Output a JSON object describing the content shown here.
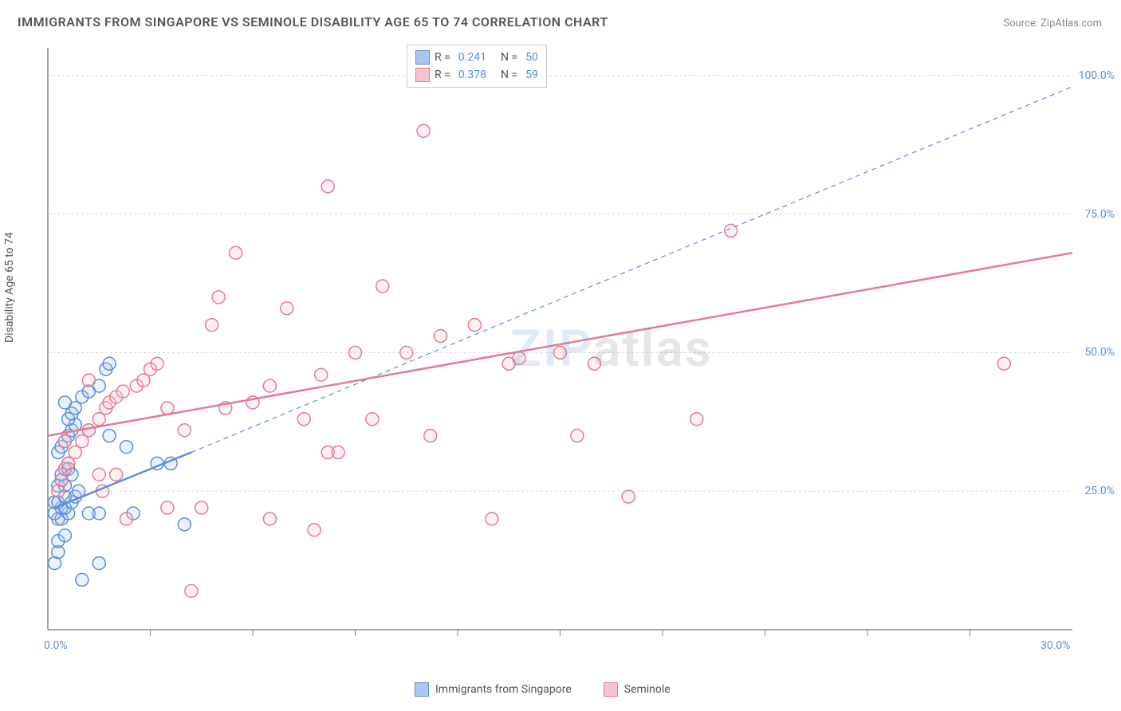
{
  "title": "IMMIGRANTS FROM SINGAPORE VS SEMINOLE DISABILITY AGE 65 TO 74 CORRELATION CHART",
  "source": "Source: ZipAtlas.com",
  "watermark_zip": "ZIP",
  "watermark_atlas": "atlas",
  "ylabel": "Disability Age 65 to 74",
  "chart": {
    "type": "scatter",
    "background_color": "#ffffff",
    "grid_color": "#d5d5d5",
    "axis_color": "#888888",
    "xlim": [
      0,
      30
    ],
    "ylim": [
      0,
      105
    ],
    "xticks_major": [
      0,
      30
    ],
    "xticks_minor": [
      3,
      6,
      9,
      12,
      15,
      18,
      21,
      24,
      27
    ],
    "yticks": [
      25,
      50,
      75,
      100
    ],
    "xtick_labels": [
      "0.0%",
      "30.0%"
    ],
    "ytick_labels": [
      "25.0%",
      "50.0%",
      "75.0%",
      "100.0%"
    ],
    "tick_color": "#5b8fd6",
    "tick_fontsize": 14,
    "marker_radius": 8,
    "marker_fill_opacity": 0.25,
    "marker_stroke_width": 1.5,
    "series": [
      {
        "name": "Immigrants from Singapore",
        "color": "#5b8fd6",
        "fill": "#a9c8ec",
        "R": "0.241",
        "N": "50",
        "trend_solid": {
          "x1": 0.2,
          "y1": 22,
          "x2": 4.2,
          "y2": 32,
          "width": 2.5
        },
        "trend_dash": {
          "x1": 4.2,
          "y1": 32,
          "x2": 30,
          "y2": 98,
          "width": 1.2,
          "dash": "6,5"
        },
        "points": [
          [
            0.2,
            12
          ],
          [
            0.3,
            14
          ],
          [
            0.3,
            16
          ],
          [
            0.5,
            17
          ],
          [
            0.3,
            20
          ],
          [
            0.4,
            20
          ],
          [
            0.2,
            21
          ],
          [
            0.6,
            21
          ],
          [
            0.4,
            22
          ],
          [
            0.5,
            22
          ],
          [
            0.2,
            23
          ],
          [
            0.3,
            23
          ],
          [
            0.7,
            23
          ],
          [
            0.5,
            24
          ],
          [
            0.8,
            24
          ],
          [
            0.9,
            25
          ],
          [
            1.2,
            21
          ],
          [
            1.5,
            21
          ],
          [
            0.3,
            26
          ],
          [
            0.5,
            26
          ],
          [
            0.4,
            27
          ],
          [
            0.4,
            28
          ],
          [
            0.5,
            29
          ],
          [
            0.6,
            30
          ],
          [
            0.6,
            29
          ],
          [
            0.7,
            28
          ],
          [
            0.3,
            32
          ],
          [
            0.4,
            33
          ],
          [
            0.5,
            34
          ],
          [
            0.6,
            35
          ],
          [
            0.7,
            36
          ],
          [
            0.8,
            37
          ],
          [
            0.6,
            38
          ],
          [
            0.7,
            39
          ],
          [
            0.8,
            40
          ],
          [
            0.5,
            41
          ],
          [
            1.0,
            42
          ],
          [
            1.2,
            43
          ],
          [
            1.5,
            44
          ],
          [
            1.7,
            47
          ],
          [
            1.8,
            48
          ],
          [
            1.2,
            36
          ],
          [
            1.8,
            35
          ],
          [
            2.3,
            33
          ],
          [
            2.5,
            21
          ],
          [
            3.2,
            30
          ],
          [
            3.6,
            30
          ],
          [
            4.0,
            19
          ],
          [
            1.0,
            9
          ],
          [
            1.5,
            12
          ]
        ]
      },
      {
        "name": "Seminole",
        "color": "#e67a94",
        "fill": "#f6c3cf",
        "R": "0.378",
        "N": "59",
        "trend_solid": {
          "x1": 0,
          "y1": 35,
          "x2": 30,
          "y2": 68,
          "width": 2.5
        },
        "points": [
          [
            0.3,
            25
          ],
          [
            0.4,
            27
          ],
          [
            0.5,
            29
          ],
          [
            0.6,
            30
          ],
          [
            0.8,
            32
          ],
          [
            1.0,
            34
          ],
          [
            1.2,
            36
          ],
          [
            1.5,
            38
          ],
          [
            1.6,
            25
          ],
          [
            1.7,
            40
          ],
          [
            1.8,
            41
          ],
          [
            2.0,
            42
          ],
          [
            2.2,
            43
          ],
          [
            2.6,
            44
          ],
          [
            2.8,
            45
          ],
          [
            3.0,
            47
          ],
          [
            2.3,
            20
          ],
          [
            3.2,
            48
          ],
          [
            3.5,
            40
          ],
          [
            4.0,
            36
          ],
          [
            4.8,
            55
          ],
          [
            5.2,
            40
          ],
          [
            5.0,
            60
          ],
          [
            4.5,
            22
          ],
          [
            6.0,
            41
          ],
          [
            6.5,
            44
          ],
          [
            6.5,
            20
          ],
          [
            7.5,
            38
          ],
          [
            7.8,
            18
          ],
          [
            8.2,
            32
          ],
          [
            8.5,
            32
          ],
          [
            8.0,
            46
          ],
          [
            8.2,
            80
          ],
          [
            9.0,
            50
          ],
          [
            9.8,
            62
          ],
          [
            9.5,
            38
          ],
          [
            10.5,
            50
          ],
          [
            11.0,
            90
          ],
          [
            11.2,
            35
          ],
          [
            11.5,
            53
          ],
          [
            12.5,
            55
          ],
          [
            13.0,
            20
          ],
          [
            13.5,
            48
          ],
          [
            13.8,
            49
          ],
          [
            15.0,
            50
          ],
          [
            15.5,
            35
          ],
          [
            16.0,
            48
          ],
          [
            17.0,
            24
          ],
          [
            19.0,
            38
          ],
          [
            20.0,
            72
          ],
          [
            5.5,
            68
          ],
          [
            7.0,
            58
          ],
          [
            28.0,
            48
          ],
          [
            3.5,
            22
          ],
          [
            2.0,
            28
          ],
          [
            1.2,
            45
          ],
          [
            1.5,
            28
          ],
          [
            4.2,
            7
          ],
          [
            0.5,
            34
          ]
        ]
      }
    ]
  },
  "legend_top": {
    "rows": [
      {
        "sw_fill": "#a9c8ec",
        "sw_border": "#5b8fd6",
        "r_label": "R =",
        "r_val": "0.241",
        "n_label": "N =",
        "n_val": "50"
      },
      {
        "sw_fill": "#f6c3cf",
        "sw_border": "#e67a94",
        "r_label": "R =",
        "r_val": "0.378",
        "n_label": "N =",
        "n_val": "59"
      }
    ]
  },
  "legend_bottom": {
    "items": [
      {
        "sw_fill": "#a9c8ec",
        "sw_border": "#5b8fd6",
        "label": "Immigrants from Singapore"
      },
      {
        "sw_fill": "#f6c3cf",
        "sw_border": "#e67a94",
        "label": "Seminole"
      }
    ]
  }
}
